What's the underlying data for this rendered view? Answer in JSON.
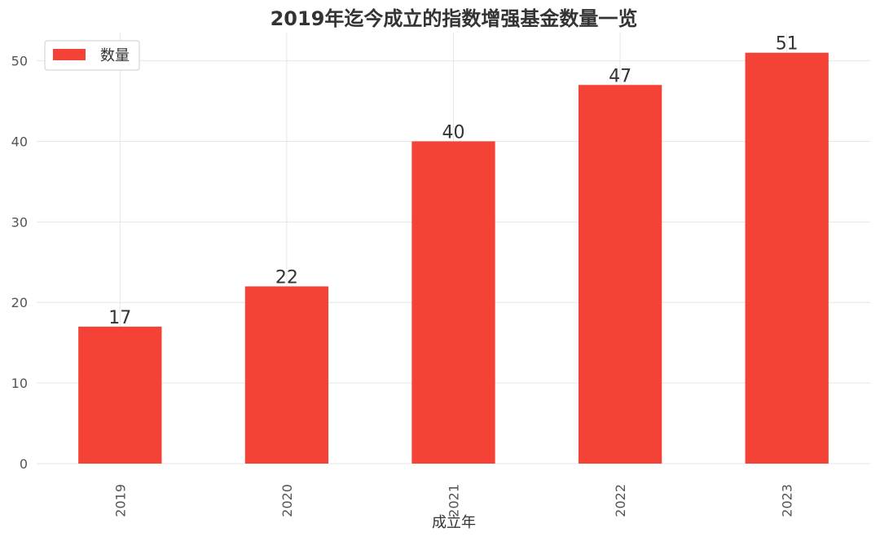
{
  "chart_data": {
    "type": "bar",
    "title": "2019年迄今成立的指数增强基金数量一览",
    "xlabel": "成立年",
    "ylabel": "",
    "categories": [
      "2019",
      "2020",
      "2021",
      "2022",
      "2023"
    ],
    "series": [
      {
        "name": "数量",
        "values": [
          17,
          22,
          40,
          47,
          51
        ],
        "color": "#f44336"
      }
    ],
    "ylim": [
      0,
      53.5
    ],
    "yticks": [
      0,
      10,
      20,
      30,
      40,
      50
    ],
    "grid": true,
    "legend_position": "top-left",
    "data_labels": true
  }
}
